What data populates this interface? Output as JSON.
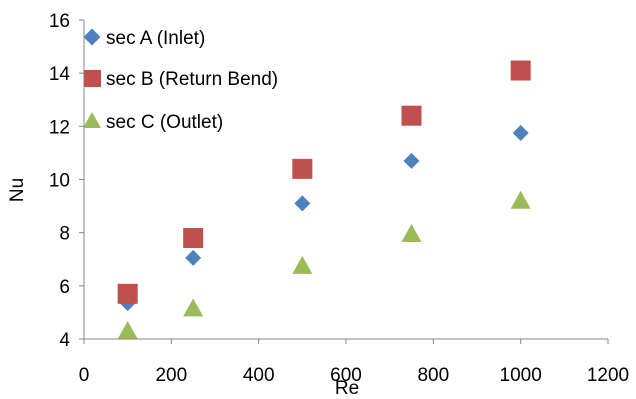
{
  "chart_data": {
    "type": "scatter",
    "xlabel": "Re",
    "ylabel": "Nu",
    "xlim": [
      0,
      1200
    ],
    "ylim": [
      4,
      16
    ],
    "xticks": [
      0,
      200,
      400,
      600,
      800,
      1000,
      1200
    ],
    "yticks": [
      4,
      6,
      8,
      10,
      12,
      14,
      16
    ],
    "grid": false,
    "legend_position": "top-left",
    "series": [
      {
        "name": "sec A (Inlet)",
        "marker": "diamond",
        "color": "#4F81BD",
        "x": [
          100,
          250,
          500,
          750,
          1000
        ],
        "y": [
          5.35,
          7.05,
          9.1,
          10.7,
          11.75
        ]
      },
      {
        "name": "sec B (Return Bend)",
        "marker": "square",
        "color": "#C0504D",
        "x": [
          100,
          250,
          500,
          750,
          1000
        ],
        "y": [
          5.7,
          7.8,
          10.4,
          12.4,
          14.1
        ]
      },
      {
        "name": "sec C (Outlet)",
        "marker": "triangle",
        "color": "#9BBB59",
        "x": [
          100,
          250,
          500,
          750,
          1000
        ],
        "y": [
          4.3,
          5.15,
          6.75,
          7.95,
          9.2
        ]
      }
    ]
  }
}
